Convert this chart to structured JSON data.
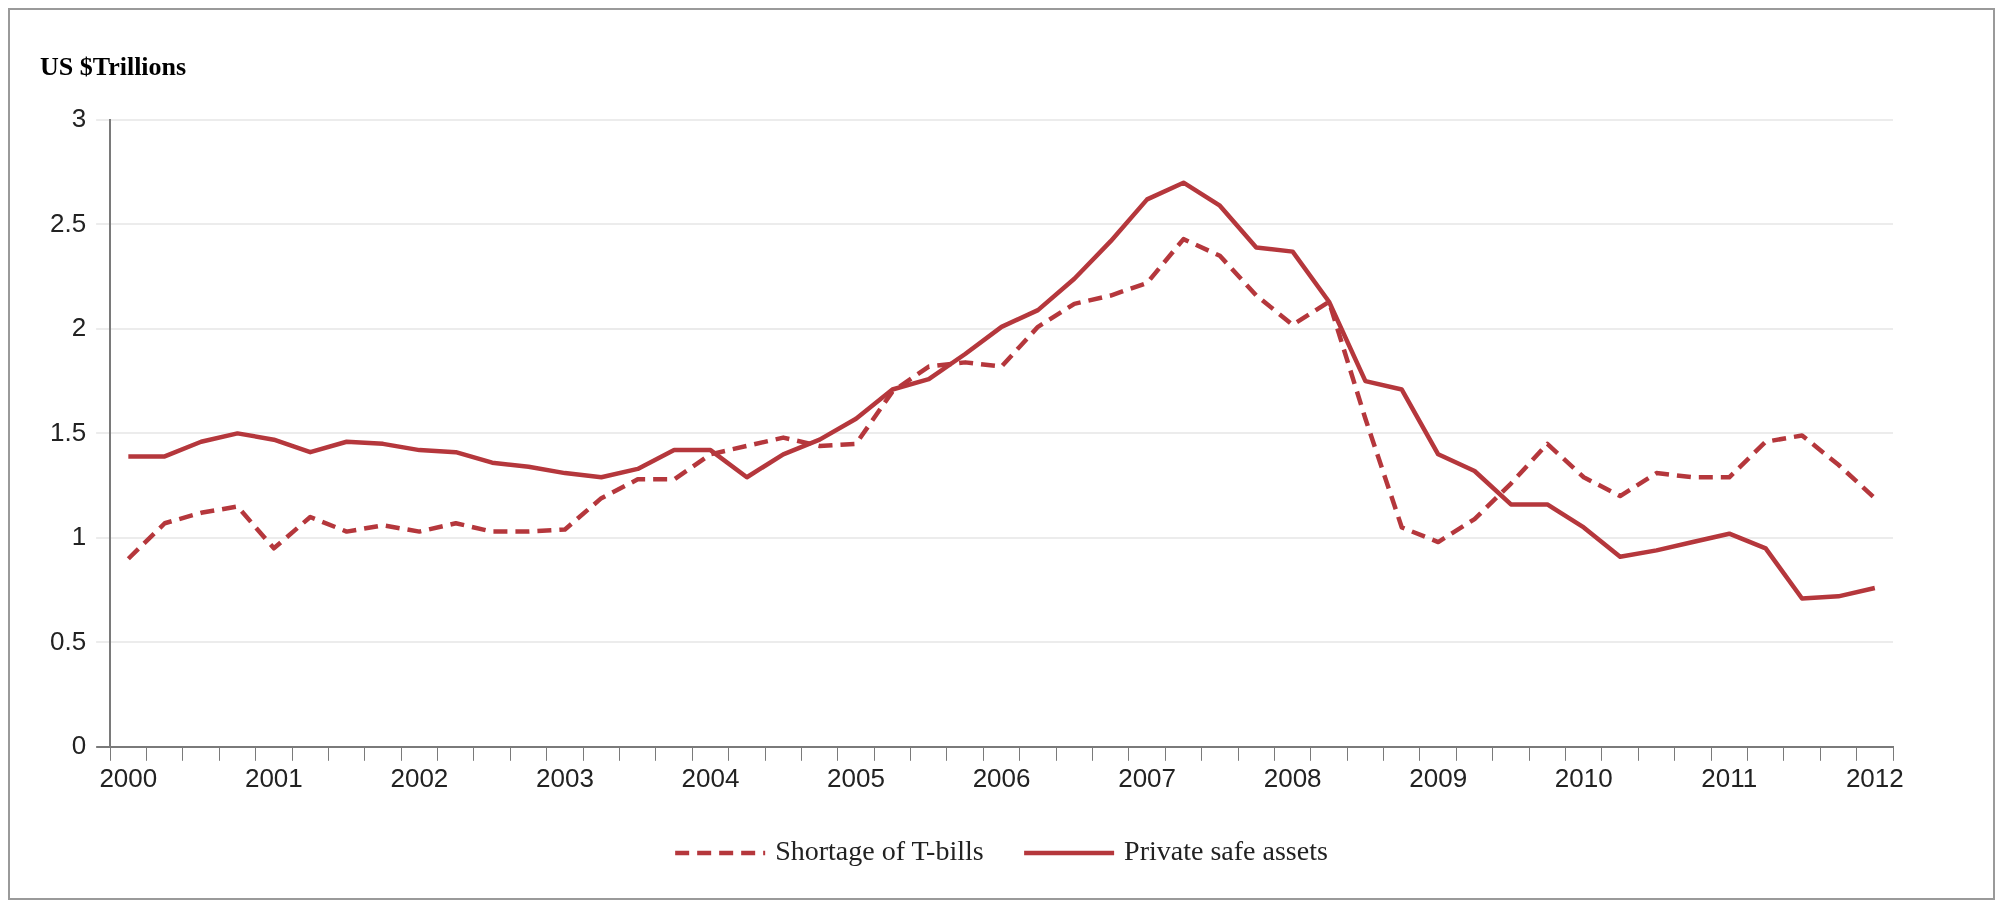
{
  "chart_data": {
    "type": "line",
    "ylabel": "US $Trillions",
    "categories": [
      "2000",
      null,
      null,
      null,
      "2001",
      null,
      null,
      null,
      "2002",
      null,
      null,
      null,
      "2003",
      null,
      null,
      null,
      "2004",
      null,
      null,
      null,
      "2005",
      null,
      null,
      null,
      "2006",
      null,
      null,
      null,
      "2007",
      null,
      null,
      null,
      "2008",
      null,
      null,
      null,
      "2009",
      null,
      null,
      null,
      "2010",
      null,
      null,
      null,
      "2011",
      null,
      null,
      null,
      "2012"
    ],
    "series": [
      {
        "name": "Shortage of T-bills",
        "color": "#b5373c",
        "line_style": "dashed",
        "values": [
          0.9,
          1.07,
          1.12,
          1.15,
          0.95,
          1.1,
          1.03,
          1.06,
          1.03,
          1.07,
          1.03,
          1.03,
          1.04,
          1.19,
          1.28,
          1.28,
          1.4,
          1.44,
          1.48,
          1.44,
          1.45,
          1.7,
          1.82,
          1.84,
          1.82,
          2.01,
          2.12,
          2.16,
          2.22,
          2.43,
          2.35,
          2.16,
          2.02,
          2.13,
          1.57,
          1.05,
          0.98,
          1.09,
          1.26,
          1.45,
          1.29,
          1.2,
          1.31,
          1.29,
          1.29,
          1.46,
          1.49,
          1.35,
          1.19
        ]
      },
      {
        "name": "Private safe assets",
        "color": "#b5373c",
        "line_style": "solid",
        "values": [
          1.39,
          1.39,
          1.46,
          1.5,
          1.47,
          1.41,
          1.46,
          1.45,
          1.42,
          1.41,
          1.36,
          1.34,
          1.31,
          1.29,
          1.33,
          1.42,
          1.42,
          1.29,
          1.4,
          1.47,
          1.57,
          1.71,
          1.76,
          1.88,
          2.01,
          2.09,
          2.24,
          2.42,
          2.62,
          2.7,
          2.59,
          2.39,
          2.37,
          2.13,
          1.75,
          1.71,
          1.4,
          1.32,
          1.16,
          1.16,
          1.05,
          0.91,
          0.94,
          0.98,
          1.02,
          0.95,
          0.71,
          0.72,
          0.76
        ]
      }
    ],
    "ylim": [
      0,
      3
    ],
    "yticks": [
      0,
      0.5,
      1,
      1.5,
      2,
      2.5,
      3
    ],
    "grid": "y",
    "legend": "bottom",
    "marker": "none"
  }
}
